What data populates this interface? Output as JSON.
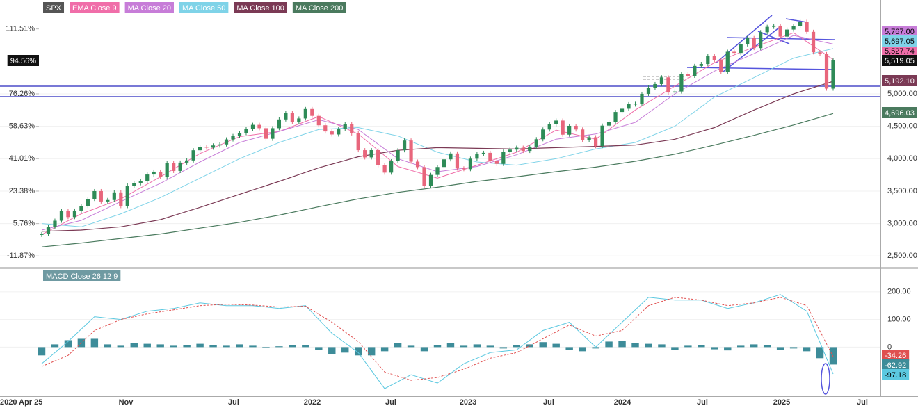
{
  "chart_data": {
    "type": "candlestick",
    "symbol": {
      "name": "SPX",
      "color": "#555555",
      "up_color": "#2e8b57",
      "down_color": "#e8667c",
      "values": [
        2836,
        2950,
        3044,
        3190,
        3100,
        3200,
        3271,
        3380,
        3500,
        3340,
        3363,
        3480,
        3270,
        3585,
        3621,
        3660,
        3756,
        3800,
        3714,
        3930,
        3811,
        3940,
        3973,
        4130,
        4181,
        4170,
        4204,
        4220,
        4297,
        4350,
        4395,
        4460,
        4522,
        4470,
        4307,
        4470,
        4605,
        4700,
        4567,
        4620,
        4766,
        4660,
        4515,
        4420,
        4373,
        4460,
        4530,
        4390,
        4131,
        4020,
        4132,
        3900,
        3785,
        3960,
        4130,
        4280,
        3955,
        3870,
        3585,
        3750,
        3872,
        3990,
        4080,
        3850,
        3839,
        4000,
        4076,
        4090,
        3970,
        3920,
        4109,
        4140,
        4169,
        4120,
        4180,
        4300,
        4450,
        4530,
        4588,
        4370,
        4507,
        4450,
        4288,
        4330,
        4194,
        4510,
        4568,
        4720,
        4770,
        4840,
        4846,
        5000,
        5096,
        5150,
        5254,
        5020,
        5036,
        5300,
        5278,
        5430,
        5460,
        5580,
        5522,
        5340,
        5648,
        5630,
        5762,
        5860,
        5705,
        5950,
        6032,
        6050,
        5882,
        5990,
        6040,
        6110,
        5955,
        5640,
        5612,
        5080,
        5519.05
      ],
      "last_label": "5,519.05",
      "last_pct_label": "94.56%"
    },
    "overlays": [
      {
        "name": "EMA Close 9",
        "color": "#f06ea9",
        "values": [
          2830,
          3150,
          3380,
          3720,
          4080,
          4340,
          4420,
          4650,
          4380,
          3880,
          3700,
          3900,
          4100,
          4440,
          4300,
          4750,
          5120,
          5480,
          5720,
          5940,
          5527.74
        ],
        "last_label": "5,527.74"
      },
      {
        "name": "MA Close 20",
        "color": "#c77dd8",
        "values": [
          2900,
          3050,
          3340,
          3620,
          3950,
          4250,
          4420,
          4600,
          4450,
          4000,
          3800,
          3880,
          4060,
          4300,
          4380,
          4560,
          5000,
          5350,
          5620,
          5900,
          5767.0
        ],
        "last_label": "5,767.00"
      },
      {
        "name": "MA Close 50",
        "color": "#7fd3e8",
        "values": [
          3000,
          2950,
          3150,
          3400,
          3700,
          4000,
          4250,
          4450,
          4480,
          4350,
          4100,
          3950,
          3900,
          4000,
          4150,
          4250,
          4500,
          4950,
          5250,
          5550,
          5697.05
        ],
        "last_label": "5,697.05"
      },
      {
        "name": "MA Close 100",
        "color": "#7b3a55",
        "values": [
          2880,
          2900,
          2950,
          3060,
          3250,
          3450,
          3650,
          3860,
          4030,
          4130,
          4170,
          4160,
          4150,
          4170,
          4190,
          4210,
          4300,
          4480,
          4750,
          5000,
          5192.1
        ],
        "last_label": "5,192.10"
      },
      {
        "name": "MA Close 200",
        "color": "#4a7a5e",
        "values": [
          2640,
          2700,
          2770,
          2840,
          2930,
          3020,
          3130,
          3260,
          3380,
          3480,
          3560,
          3650,
          3720,
          3800,
          3870,
          3960,
          4070,
          4210,
          4360,
          4520,
          4696.03
        ],
        "last_label": "4,696.03"
      }
    ],
    "ylim": [
      2321,
      6446
    ],
    "yticks": [
      {
        "value": 5000,
        "label": "5,000.00"
      },
      {
        "value": 4500,
        "label": "4,500.00"
      },
      {
        "value": 4000,
        "label": "4,000.00"
      },
      {
        "value": 3500,
        "label": "3,500.00"
      },
      {
        "value": 3000,
        "label": "3,000.00"
      },
      {
        "value": 2500,
        "label": "2,500.00"
      }
    ],
    "y2lim": [
      -18.18,
      127.24
    ],
    "y2ticks": [
      {
        "value": 111.51,
        "label": "111.51%"
      },
      {
        "value": 76.26,
        "label": "76.26%"
      },
      {
        "value": 58.63,
        "label": "58.63%"
      },
      {
        "value": 41.01,
        "label": "41.01%"
      },
      {
        "value": 23.38,
        "label": "23.38%"
      },
      {
        "value": 5.76,
        "label": "5.76%"
      },
      {
        "value": -11.87,
        "label": "-11.87%"
      }
    ],
    "x_labels": [
      "2020 Apr 25",
      "Nov",
      "Jul",
      "2022",
      "Jul",
      "2023",
      "Jul",
      "2024",
      "Jul",
      "2025",
      "Jul"
    ],
    "macd": {
      "name": "MACD Close 26 12 9",
      "ylim": [
        -177.5,
        285
      ],
      "yticks": [
        {
          "value": 200,
          "label": "200.00"
        },
        {
          "value": 100,
          "label": "100.00"
        },
        0
      ],
      "macd": {
        "color": "#5bc8e0",
        "values": [
          -60,
          20,
          110,
          100,
          130,
          140,
          160,
          150,
          150,
          140,
          150,
          50,
          -20,
          -150,
          -100,
          -130,
          -60,
          -20,
          -10,
          60,
          90,
          0,
          90,
          180,
          170,
          170,
          140,
          160,
          190,
          130,
          -97.18
        ],
        "last_label": "-97.18"
      },
      "signal": {
        "color": "#e05050",
        "values": [
          -70,
          -30,
          60,
          100,
          120,
          135,
          150,
          155,
          152,
          145,
          148,
          90,
          20,
          -90,
          -120,
          -110,
          -80,
          -40,
          -20,
          30,
          80,
          40,
          60,
          150,
          180,
          170,
          150,
          160,
          180,
          150,
          -34.26
        ],
        "last_label": "-34.26"
      },
      "histogram": {
        "color": "#3d8c99",
        "values": [
          -30,
          10,
          25,
          30,
          30,
          10,
          5,
          15,
          12,
          10,
          5,
          8,
          12,
          8,
          5,
          10,
          5,
          -3,
          3,
          6,
          8,
          -10,
          -25,
          -20,
          -30,
          -30,
          -15,
          15,
          5,
          -15,
          8,
          15,
          5,
          10,
          5,
          -5,
          8,
          10,
          18,
          12,
          -10,
          -15,
          -5,
          20,
          22,
          15,
          12,
          10,
          -10,
          5,
          8,
          -8,
          -12,
          5,
          10,
          8,
          -10,
          -5,
          -15,
          -40,
          -62.92
        ],
        "last_label": "-62.92"
      }
    }
  }
}
